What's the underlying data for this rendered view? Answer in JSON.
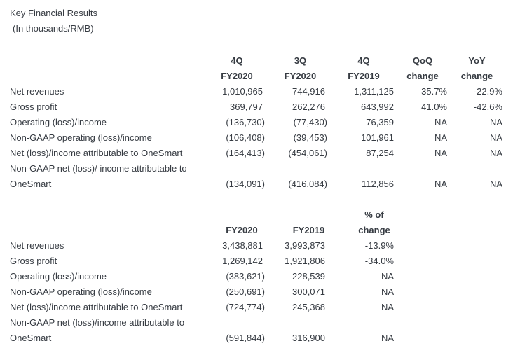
{
  "page": {
    "title": "Key Financial Results",
    "subtitle": "(In thousands/RMB)"
  },
  "colors": {
    "text": "#363b42",
    "background": "#ffffff"
  },
  "table1": {
    "header_line1": [
      "4Q",
      "3Q",
      "4Q",
      "QoQ",
      "YoY"
    ],
    "header_line2": [
      "FY2020",
      "FY2020",
      "FY2019",
      "change",
      "change"
    ],
    "rows": [
      {
        "label": "Net revenues",
        "values": [
          "1,010,965",
          "744,916",
          "1,311,125",
          "35.7%",
          "-22.9%"
        ]
      },
      {
        "label": "Gross profit",
        "values": [
          "369,797",
          "262,276",
          "643,992",
          "41.0%",
          "-42.6%"
        ]
      },
      {
        "label": "Operating (loss)/income",
        "values": [
          "(136,730)",
          "(77,430)",
          "76,359",
          "NA",
          "NA"
        ]
      },
      {
        "label": "Non-GAAP operating (loss)/income",
        "values": [
          "(106,408)",
          "(39,453)",
          "101,961",
          "NA",
          "NA"
        ]
      },
      {
        "label": "Net (loss)/income attributable to OneSmart",
        "values": [
          "(164,413)",
          "(454,061)",
          "87,254",
          "NA",
          "NA"
        ]
      },
      {
        "label": "Non-GAAP net (loss)/ income attributable to",
        "values": []
      },
      {
        "label": "OneSmart",
        "values": [
          "(134,091)",
          "(416,084)",
          "112,856",
          "NA",
          "NA"
        ]
      }
    ]
  },
  "table2": {
    "header_line1": [
      "",
      "",
      "% of"
    ],
    "header_line2": [
      "FY2020",
      "FY2019",
      "change"
    ],
    "rows": [
      {
        "label": "Net revenues",
        "values": [
          "3,438,881",
          "3,993,873",
          "-13.9%"
        ]
      },
      {
        "label": "Gross profit",
        "values": [
          "1,269,142",
          "1,921,806",
          "-34.0%"
        ]
      },
      {
        "label": "Operating (loss)/income",
        "values": [
          "(383,621)",
          "228,539",
          "NA"
        ]
      },
      {
        "label": "Non-GAAP operating (loss)/income",
        "values": [
          "(250,691)",
          "300,071",
          "NA"
        ]
      },
      {
        "label": "Net (loss)/income attributable to OneSmart",
        "values": [
          "(724,774)",
          "245,368",
          "NA"
        ]
      },
      {
        "label": "Non-GAAP net (loss)/income attributable to",
        "values": []
      },
      {
        "label": "OneSmart",
        "values": [
          "(591,844)",
          "316,900",
          "NA"
        ]
      }
    ]
  }
}
